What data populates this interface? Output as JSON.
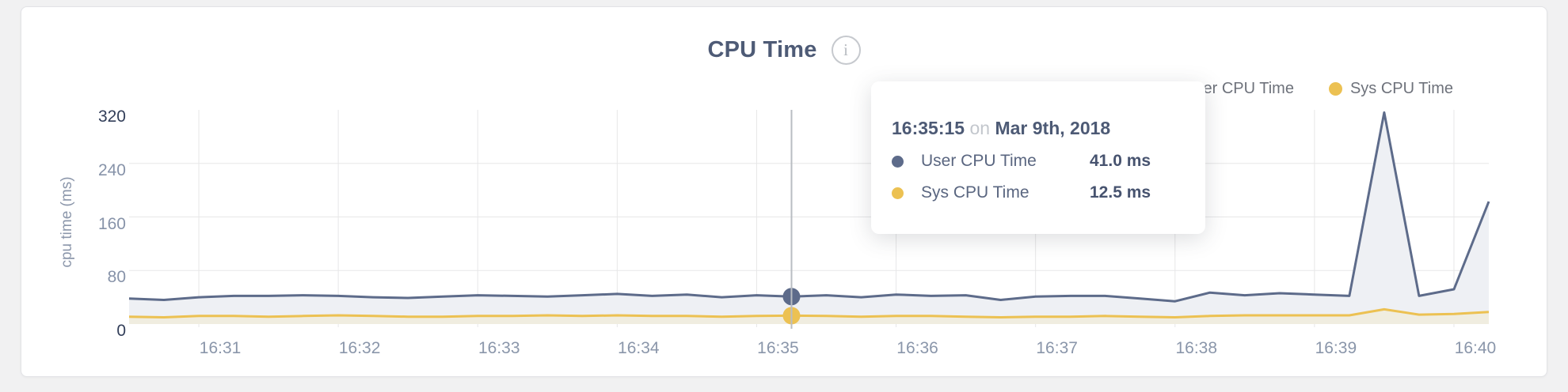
{
  "card": {
    "title": "CPU Time",
    "info_icon_glyph": "i"
  },
  "legend": [
    {
      "label": "User CPU Time",
      "color": "#5d6b8a"
    },
    {
      "label": "Sys CPU Time",
      "color": "#ecc152"
    }
  ],
  "tooltip": {
    "time": "16:35:15",
    "connector": "on",
    "date": "Mar 9th, 2018",
    "rows": [
      {
        "label": "User CPU Time",
        "value": "41.0 ms",
        "color": "#5d6b8a"
      },
      {
        "label": "Sys CPU Time",
        "value": "12.5 ms",
        "color": "#ecc152"
      }
    ]
  },
  "chart_data": {
    "type": "area",
    "title": "CPU Time",
    "xlabel": "",
    "ylabel": "cpu time (ms)",
    "ylim": [
      0,
      320
    ],
    "yticks": [
      0,
      80,
      160,
      240,
      320
    ],
    "xticks": [
      "16:31",
      "16:32",
      "16:33",
      "16:34",
      "16:35",
      "16:36",
      "16:37",
      "16:38",
      "16:39",
      "16:40"
    ],
    "x_start": "16:30:30",
    "x_end": "16:40:15",
    "x_interval_seconds": 15,
    "grid": true,
    "legend_position": "top-right",
    "hover": {
      "index": 19,
      "time": "16:35:15"
    },
    "series": [
      {
        "name": "User CPU Time",
        "color": "#5d6b8a",
        "fill": "#eef0f4",
        "values": [
          38,
          36,
          40,
          42,
          42,
          43,
          42,
          40,
          39,
          41,
          43,
          42,
          41,
          43,
          45,
          42,
          44,
          40,
          43,
          41,
          43,
          40,
          44,
          42,
          43,
          36,
          41,
          42,
          42,
          38,
          34,
          47,
          43,
          46,
          44,
          42,
          316,
          42,
          52,
          183
        ]
      },
      {
        "name": "Sys CPU Time",
        "color": "#ecc152",
        "fill": "#f0ede0",
        "values": [
          11,
          10,
          12,
          12,
          11,
          12,
          13,
          12,
          11,
          11,
          12,
          12,
          13,
          12,
          13,
          12,
          12,
          11,
          12,
          12.5,
          12,
          11,
          12,
          12,
          11,
          10,
          11,
          11,
          12,
          11,
          10,
          12,
          13,
          13,
          13,
          13,
          22,
          14,
          15,
          18
        ]
      }
    ]
  }
}
